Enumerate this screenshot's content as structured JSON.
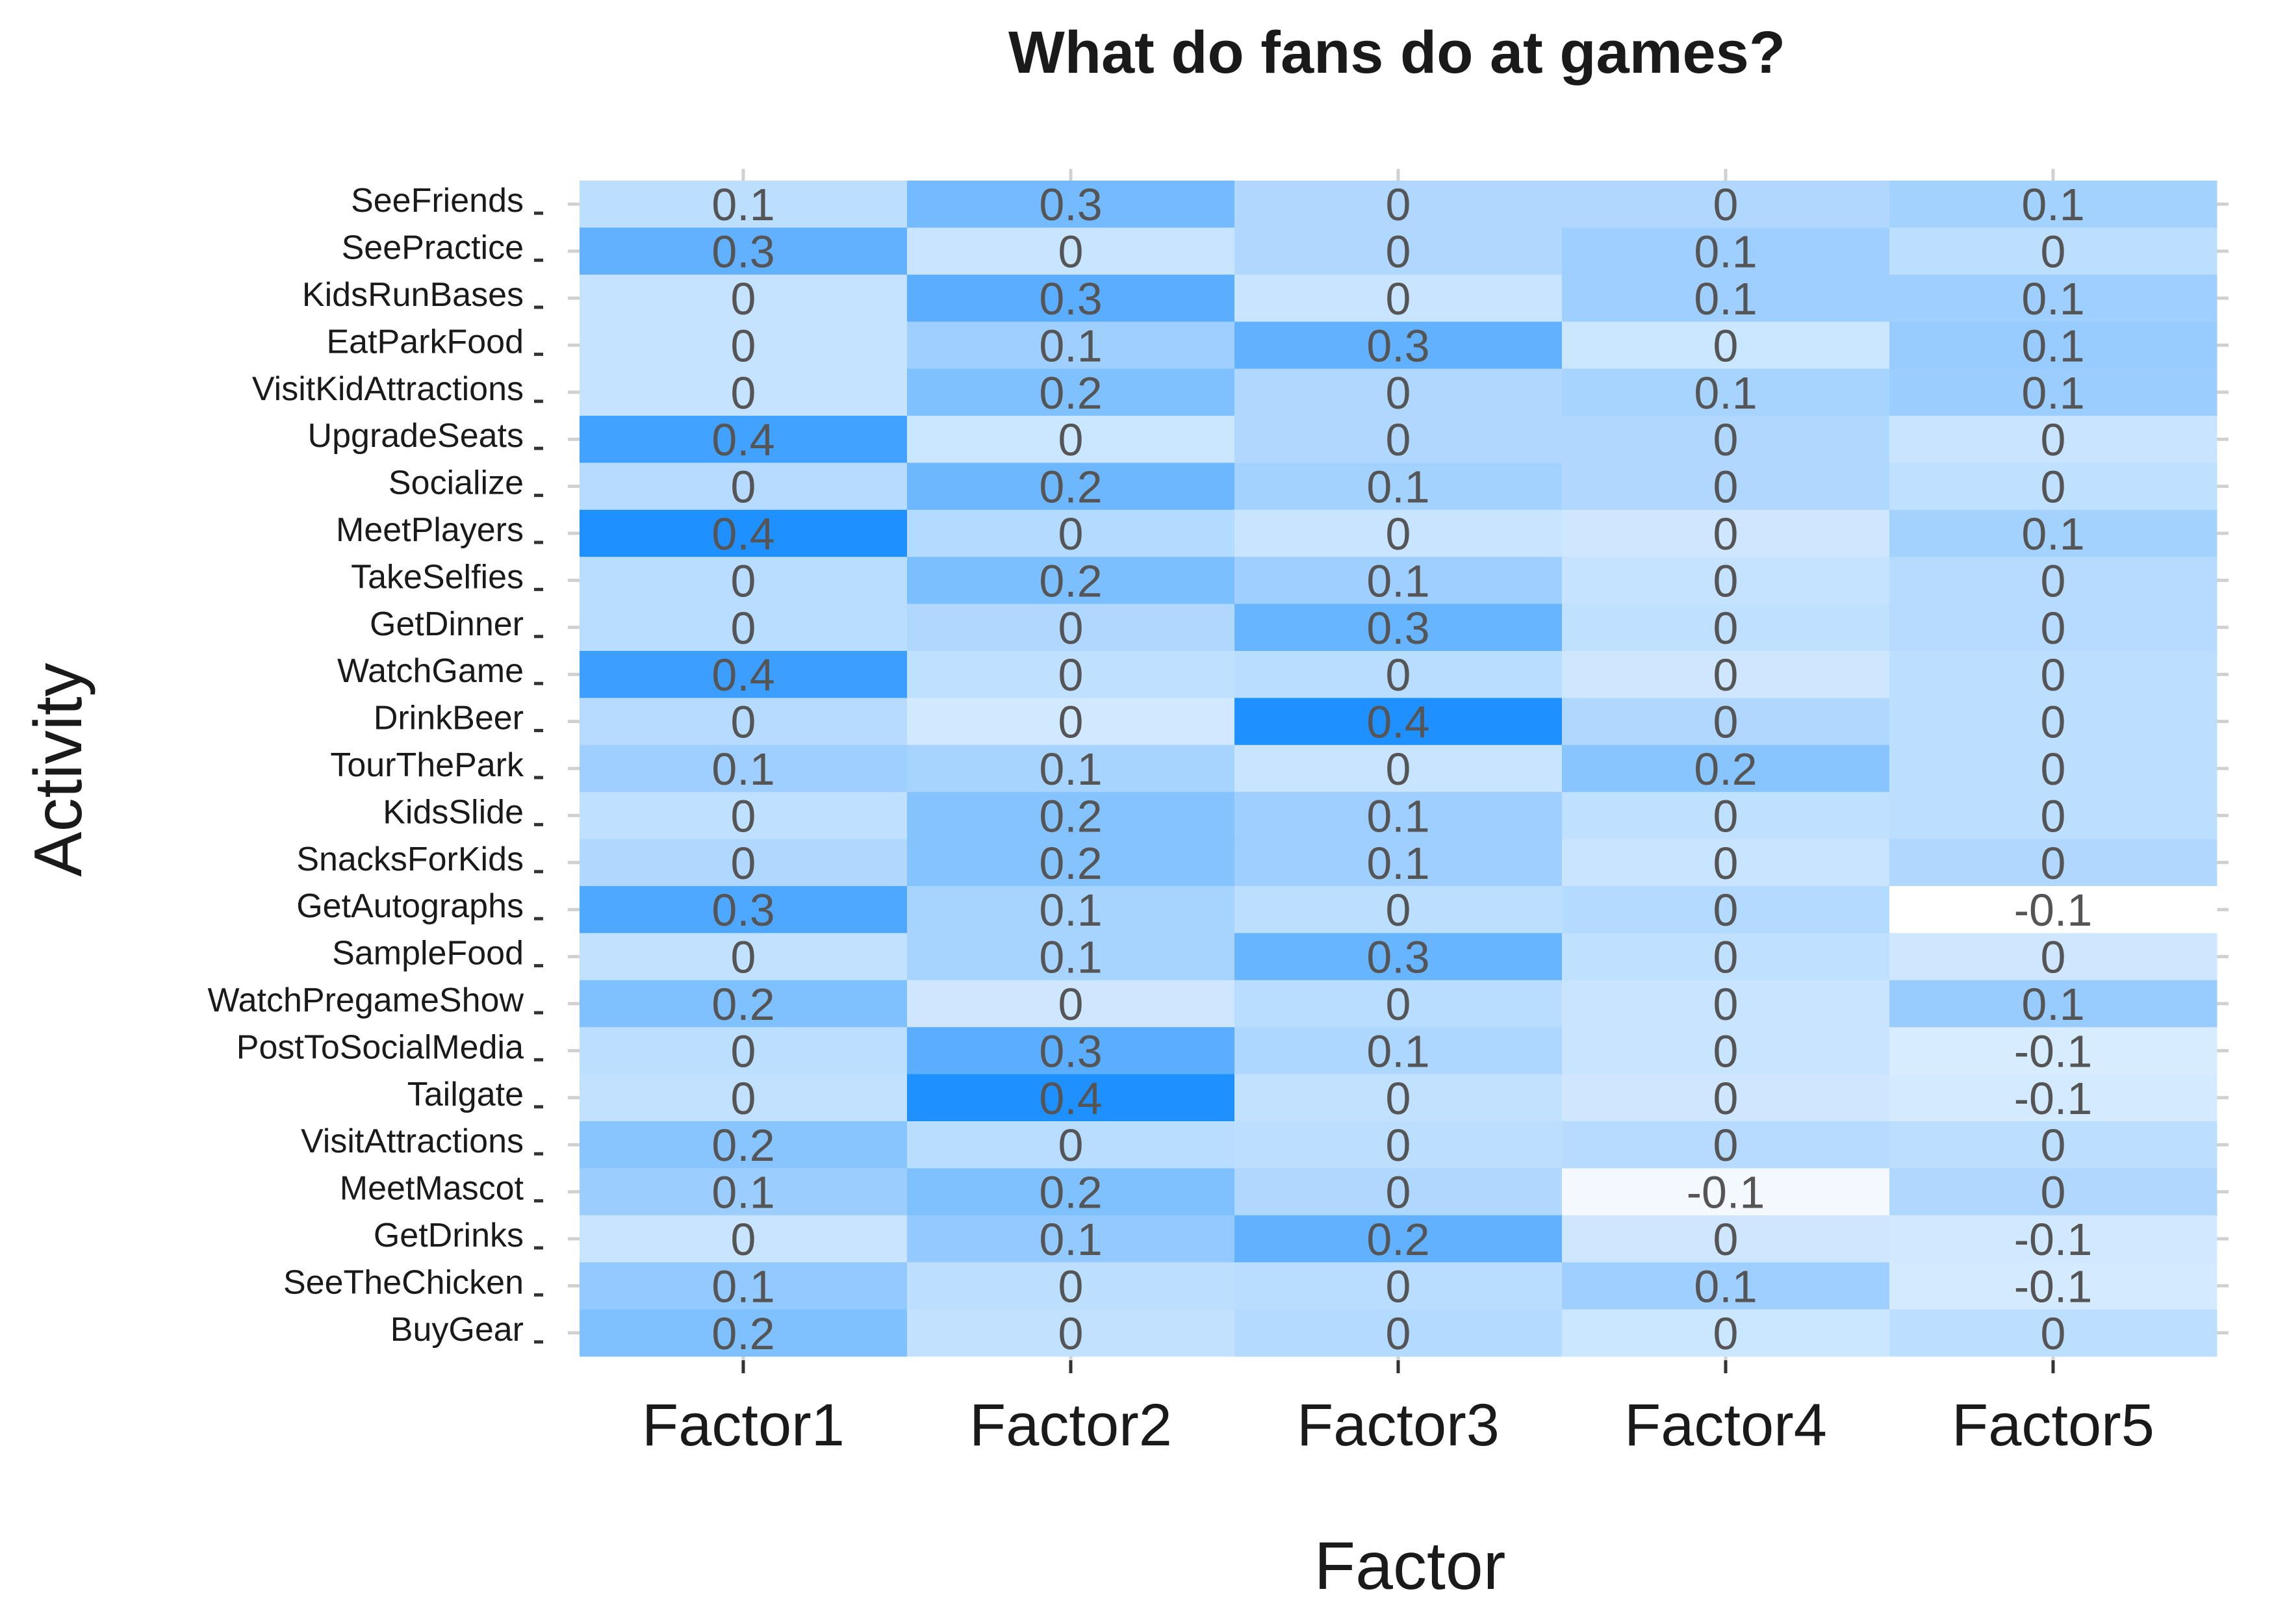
{
  "chart_data": {
    "type": "heatmap",
    "title": "What do fans do at games?",
    "xlabel": "Factor",
    "ylabel": "Activity",
    "x_categories": [
      "Factor1",
      "Factor2",
      "Factor3",
      "Factor4",
      "Factor5"
    ],
    "y_categories": [
      "SeeFriends",
      "SeePractice",
      "KidsRunBases",
      "EatParkFood",
      "VisitKidAttractions",
      "UpgradeSeats",
      "Socialize",
      "MeetPlayers",
      "TakeSelfies",
      "GetDinner",
      "WatchGame",
      "DrinkBeer",
      "TourThePark",
      "KidsSlide",
      "SnacksForKids",
      "GetAutographs",
      "SampleFood",
      "WatchPregameShow",
      "PostToSocialMedia",
      "Tailgate",
      "VisitAttractions",
      "MeetMascot",
      "GetDrinks",
      "SeeTheChicken",
      "BuyGear"
    ],
    "values": [
      [
        0.1,
        0.3,
        0,
        0,
        0.1
      ],
      [
        0.3,
        0,
        0,
        0.1,
        0
      ],
      [
        0,
        0.3,
        0,
        0.1,
        0.1
      ],
      [
        0,
        0.1,
        0.3,
        0,
        0.1
      ],
      [
        0,
        0.2,
        0,
        0.1,
        0.1
      ],
      [
        0.4,
        0,
        0,
        0,
        0
      ],
      [
        0,
        0.2,
        0.1,
        0,
        0
      ],
      [
        0.4,
        0,
        0,
        0,
        0.1
      ],
      [
        0,
        0.2,
        0.1,
        0,
        0
      ],
      [
        0,
        0,
        0.3,
        0,
        0
      ],
      [
        0.4,
        0,
        0,
        0,
        0
      ],
      [
        0,
        0,
        0.4,
        0,
        0
      ],
      [
        0.1,
        0.1,
        0,
        0.2,
        0
      ],
      [
        0,
        0.2,
        0.1,
        0,
        0
      ],
      [
        0,
        0.2,
        0.1,
        0,
        0
      ],
      [
        0.3,
        0.1,
        0,
        0,
        -0.1
      ],
      [
        0,
        0.1,
        0.3,
        0,
        0
      ],
      [
        0.2,
        0,
        0,
        0,
        0.1
      ],
      [
        0,
        0.3,
        0.1,
        0,
        -0.1
      ],
      [
        0,
        0.4,
        0,
        0,
        -0.1
      ],
      [
        0.2,
        0,
        0,
        0,
        0
      ],
      [
        0.1,
        0.2,
        0,
        -0.1,
        0
      ],
      [
        0,
        0.1,
        0.2,
        0,
        -0.1
      ],
      [
        0.1,
        0,
        0,
        0.1,
        -0.1
      ],
      [
        0.2,
        0,
        0,
        0,
        0
      ]
    ],
    "shading": [
      [
        0.1,
        0.34,
        0.14,
        0.14,
        0.18
      ],
      [
        0.4,
        0.06,
        0.14,
        0.2,
        0.1
      ],
      [
        0.07,
        0.42,
        0.06,
        0.2,
        0.2
      ],
      [
        0.07,
        0.2,
        0.4,
        0.05,
        0.22
      ],
      [
        0.07,
        0.3,
        0.14,
        0.17,
        0.21
      ],
      [
        0.5,
        0.05,
        0.14,
        0.14,
        0.06
      ],
      [
        0.12,
        0.36,
        0.18,
        0.14,
        0.09
      ],
      [
        0.62,
        0.13,
        0.06,
        0.04,
        0.18
      ],
      [
        0.11,
        0.31,
        0.2,
        0.07,
        0.12
      ],
      [
        0.11,
        0.14,
        0.38,
        0.09,
        0.12
      ],
      [
        0.52,
        0.09,
        0.11,
        0.04,
        0.1
      ],
      [
        0.12,
        0.03,
        0.62,
        0.14,
        0.1
      ],
      [
        0.2,
        0.17,
        0.06,
        0.27,
        0.1
      ],
      [
        0.09,
        0.28,
        0.2,
        0.09,
        0.1
      ],
      [
        0.14,
        0.28,
        0.2,
        0.06,
        0.14
      ],
      [
        0.46,
        0.17,
        0.1,
        0.13,
        -0.12
      ],
      [
        0.08,
        0.17,
        0.38,
        0.09,
        0.04
      ],
      [
        0.3,
        0.04,
        0.11,
        0.06,
        0.22
      ],
      [
        0.1,
        0.42,
        0.15,
        0.06,
        0.01
      ],
      [
        0.08,
        0.62,
        0.08,
        0.04,
        0.02
      ],
      [
        0.27,
        0.11,
        0.1,
        0.12,
        0.1
      ],
      [
        0.21,
        0.3,
        0.14,
        -0.08,
        0.14
      ],
      [
        0.06,
        0.24,
        0.4,
        0.04,
        0.03
      ],
      [
        0.24,
        0.1,
        0.11,
        0.2,
        0.02
      ],
      [
        0.3,
        0.08,
        0.13,
        0.05,
        0.1
      ]
    ],
    "color_scale": {
      "low": "#ffffff",
      "high": "#1e90ff"
    },
    "grid": true,
    "legend": "none"
  }
}
